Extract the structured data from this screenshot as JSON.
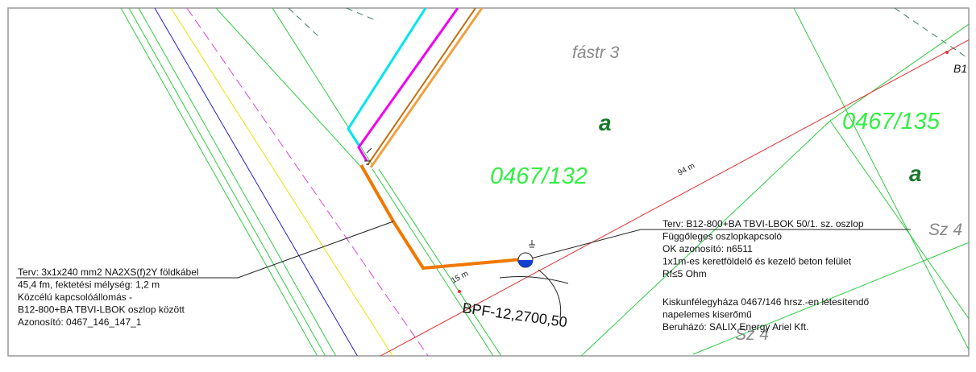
{
  "parcels": {
    "fastr": "fástr 3",
    "parcel_132": "0467/132",
    "parcel_135": "0467/135",
    "class_a_1": "a",
    "class_a_2": "a",
    "sz4_right": "Sz 4",
    "sz4_bottom": "Sz 4",
    "corner_label": "B1"
  },
  "distances": {
    "long": "94 m",
    "short": "15 m"
  },
  "bpf_label": "BPF-12,2700,50",
  "cable_note": [
    "Terv: 3x1x240 mm2 NA2XS(f)2Y földkábel",
    "45,4 fm, fektetési mélység: 1,2 m",
    "Közcélú kapcsolóállomás -",
    "B12-800+BA TBVI-LBOK oszlop között",
    "Azonosító: 0467_146_147_1"
  ],
  "pole_note": [
    "Terv: B12-800+BA TBVI-LBOK 50/1. sz. oszlop",
    "Függőleges oszlopkapcsoló",
    "OK azonosító: n6511",
    "1x1m-es keretföldelő és kezelő beton felület",
    "Rf≤5 Ohm"
  ],
  "project_note": [
    "Kiskunfélegyháza 0467/146 hrsz.-en létesítendő",
    "napelemes kiserőmű",
    "Beruházó: SALIX Energy Ariel Kft."
  ]
}
